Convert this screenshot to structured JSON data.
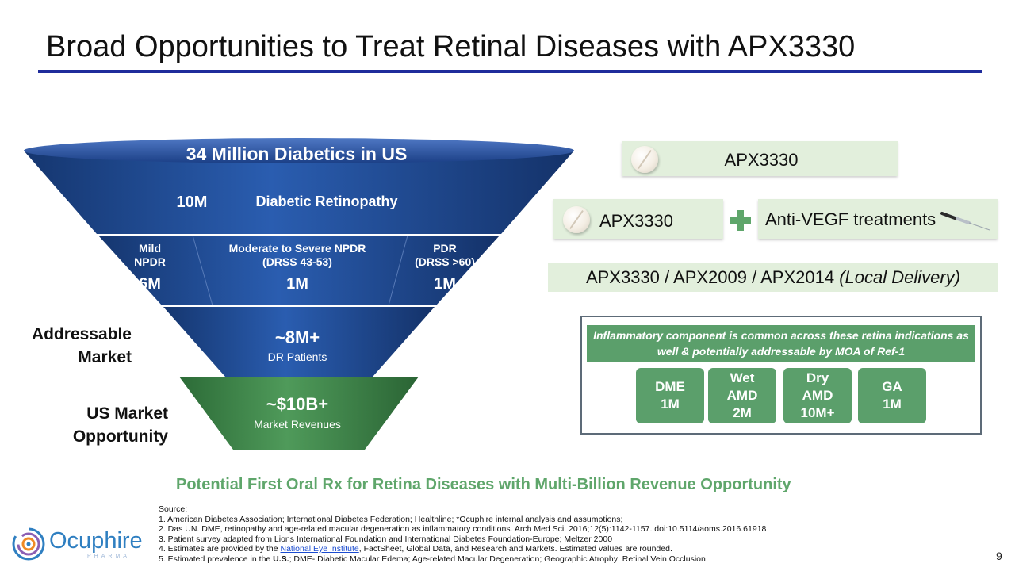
{
  "title": "Broad Opportunities to Treat Retinal Diseases with APX3330",
  "funnel": {
    "top_header": "34 Million Diabetics in US",
    "dr": {
      "count": "10M",
      "label": "Diabetic Retinopathy"
    },
    "mild": {
      "line1": "Mild",
      "line2": "NPDR",
      "value": "6M"
    },
    "moderate": {
      "line1": "Moderate to Severe NPDR",
      "line2": "(DRSS 43-53)",
      "value": "1M"
    },
    "pdr": {
      "line1": "PDR",
      "line2": "(DRSS >60)",
      "value": "1M"
    },
    "addressable": {
      "value": "~8M+",
      "label": "DR Patients"
    },
    "market": {
      "value": "~$10B+",
      "label": "Market Revenues"
    }
  },
  "side_labels": {
    "addressable": [
      "Addressable",
      "Market"
    ],
    "us_market": [
      "US Market",
      "Opportunity"
    ]
  },
  "treatments": {
    "row1": "APX3330",
    "row2_left": "APX3330",
    "row2_right": "Anti-VEGF treatments",
    "row3_main": "APX3330 / APX2009 / APX2014",
    "row3_italic": "(Local Delivery)"
  },
  "inflammatory_box": {
    "note": "Inflammatory component is common across these retina indications as well & potentially addressable by MOA of Ref-1",
    "diseases": [
      {
        "name": "DME",
        "value": "1M"
      },
      {
        "name": "Wet AMD",
        "value": "2M"
      },
      {
        "name": "Dry AMD",
        "value": "10M+"
      },
      {
        "name": "GA",
        "value": "1M"
      }
    ]
  },
  "tagline": "Potential First Oral Rx for Retina Diseases with Multi-Billion Revenue Opportunity",
  "sources": {
    "header": "Source:",
    "s1": "1. American Diabetes Association; International Diabetes Federation; Healthline; *Ocuphire internal analysis and assumptions;",
    "s2": "2. Das UN. DME, retinopathy and age-related macular degeneration as inflammatory conditions. Arch Med Sci. 2016;12(5):1142-1157. doi:10.5114/aoms.2016.61918",
    "s3": "3. Patient survey adapted from Lions International Foundation and International Diabetes Foundation-Europe; Meltzer 2000",
    "s4_pre": "4. Estimates are provided by the ",
    "s4_link": "National Eye Institute",
    "s4_post": ", FactSheet, Global Data, and Research and Markets. Estimated values are rounded.",
    "s5_pre": "5. Estimated prevalence in the ",
    "s5_bold": "U.S.",
    "s5_post": "; DME- Diabetic Macular Edema; Age-related Macular Degeneration; Geographic Atrophy; Retinal Vein Occlusion"
  },
  "logo": {
    "name": "Ocuphire",
    "sub": "PHARMA"
  },
  "page_number": "9",
  "colors": {
    "title_rule": "#1f2c9b",
    "funnel_blue": "#1f4e9e",
    "funnel_green": "#3f8a4c",
    "tag_green": "#e2efdc",
    "disease_green": "#5b9f6b",
    "tagline": "#5fa66b"
  }
}
